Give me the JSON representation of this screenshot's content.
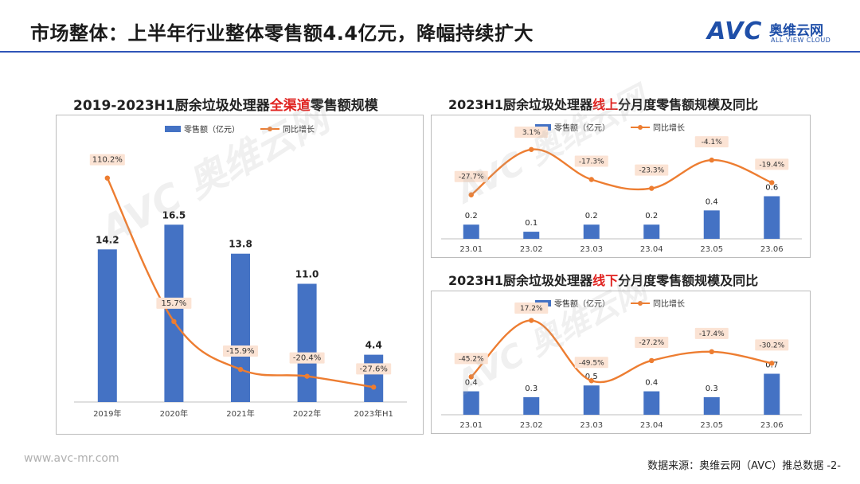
{
  "header": {
    "title": "市场整体：上半年行业整体零售额4.4亿元，降幅持续扩大",
    "logo_avc": "AVC",
    "logo_cn": "奥维云网",
    "logo_en": "ALL VIEW CLOUD"
  },
  "colors": {
    "bar": "#4472c4",
    "line": "#ed7d31",
    "accent": "#2f55b8",
    "highlight": "#e0221f"
  },
  "left_chart": {
    "title_pre": "2019-2023H1厨余垃圾处理器",
    "title_hl": "全渠道",
    "title_post": "零售额规模"
  },
  "top_right_chart": {
    "title_pre": "2023H1厨余垃圾处理器",
    "title_hl": "线上",
    "title_post": "分月度零售额规模及同比"
  },
  "bottom_right_chart": {
    "title_pre": "2023H1厨余垃圾处理器",
    "title_hl": "线下",
    "title_post": "分月度零售额规模及同比"
  },
  "chart_data": [
    {
      "type": "bar+line",
      "title": "2019-2023H1厨余垃圾处理器全渠道零售额规模",
      "categories": [
        "2019年",
        "2020年",
        "2021年",
        "2022年",
        "2023年H1"
      ],
      "series": [
        {
          "name": "零售额（亿元）",
          "kind": "bar",
          "values": [
            14.2,
            16.5,
            13.8,
            11.0,
            4.4
          ],
          "labels": [
            "14.2",
            "16.5",
            "13.8",
            "11.0",
            "4.4"
          ]
        },
        {
          "name": "同比增长",
          "kind": "line",
          "values": [
            110.2,
            15.7,
            -15.9,
            -20.4,
            -27.6
          ],
          "labels": [
            "110.2%",
            "15.7%",
            "-15.9%",
            "-20.4%",
            "-27.6%"
          ]
        }
      ],
      "bar_ylim": [
        0,
        20
      ],
      "line_ylim": [
        -40,
        120
      ],
      "legend": "top"
    },
    {
      "type": "bar+line",
      "title": "2023H1厨余垃圾处理器线上分月度零售额规模及同比",
      "categories": [
        "23.01",
        "23.02",
        "23.03",
        "23.04",
        "23.05",
        "23.06"
      ],
      "series": [
        {
          "name": "零售额（亿元）",
          "kind": "bar",
          "values": [
            0.2,
            0.1,
            0.2,
            0.2,
            0.4,
            0.6
          ],
          "labels": [
            "0.2",
            "0.1",
            "0.2",
            "0.2",
            "0.4",
            "0.6"
          ]
        },
        {
          "name": "同比增长",
          "kind": "line",
          "values": [
            -27.7,
            3.1,
            -17.3,
            -23.3,
            -4.1,
            -19.4
          ],
          "labels": [
            "-27.7%",
            "3.1%",
            "-17.3%",
            "-23.3%",
            "-4.1%",
            "-19.4%"
          ]
        }
      ],
      "bar_ylim": [
        0,
        1.2
      ],
      "line_ylim": [
        -90,
        10
      ],
      "legend": "top"
    },
    {
      "type": "bar+line",
      "title": "2023H1厨余垃圾处理器线下分月度零售额规模及同比",
      "categories": [
        "23.01",
        "23.02",
        "23.03",
        "23.04",
        "23.05",
        "23.06"
      ],
      "series": [
        {
          "name": "零售额（亿元）",
          "kind": "bar",
          "values": [
            0.4,
            0.3,
            0.5,
            0.4,
            0.3,
            0.7
          ],
          "labels": [
            "0.4",
            "0.3",
            "0.5",
            "0.4",
            "0.3",
            "0.7"
          ]
        },
        {
          "name": "同比增长",
          "kind": "line",
          "values": [
            -45.2,
            17.2,
            -49.5,
            -27.2,
            -17.4,
            -30.2
          ],
          "labels": [
            "-45.2%",
            "17.2%",
            "-49.5%",
            "-27.2%",
            "-17.4%",
            "-30.2%"
          ]
        }
      ],
      "bar_ylim": [
        0,
        1.4
      ],
      "line_ylim": [
        -140,
        30
      ],
      "legend": "top"
    }
  ],
  "footer": {
    "url": "www.avc-mr.com",
    "source": "数据来源：奥维云网（AVC）推总数据 -2-"
  }
}
